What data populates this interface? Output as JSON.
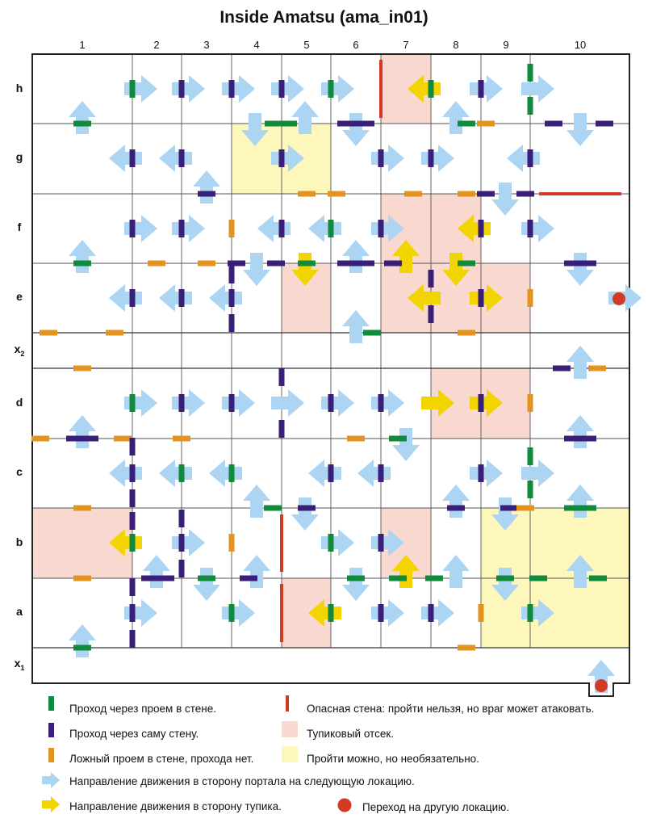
{
  "title": "Inside Amatsu (ama_in01)",
  "columns": [
    "1",
    "2",
    "3",
    "4",
    "5",
    "6",
    "7",
    "8",
    "9",
    "10"
  ],
  "rows": [
    "h",
    "g",
    "f",
    "e",
    "x2",
    "d",
    "c",
    "b",
    "a",
    "x1"
  ],
  "colors": {
    "green": "#128a3c",
    "purple": "#3a1f79",
    "orange": "#e39420",
    "red": "#d23a26",
    "blue_arrow": "#acd4f3",
    "yellow_arrow": "#f2d400",
    "pink_area": "#f9d8cf",
    "yellow_area": "#fdf7bc",
    "grid": "#333333"
  },
  "legend": {
    "green": "Проход через проем в стене.",
    "purple": "Проход через саму стену.",
    "orange": "Ложный проем в стене, прохода нет.",
    "red": "Опасная стена: пройти нельзя, но враг может атаковать.",
    "pink": "Тупиковый отсек.",
    "yellow": "Пройти можно, но необязательно.",
    "blue_arrow": "Направление движения в сторону портала на следующую локацию.",
    "yellow_arrow": "Направление движения в сторону тупика.",
    "red_dot": "Переход на другую локацию."
  }
}
